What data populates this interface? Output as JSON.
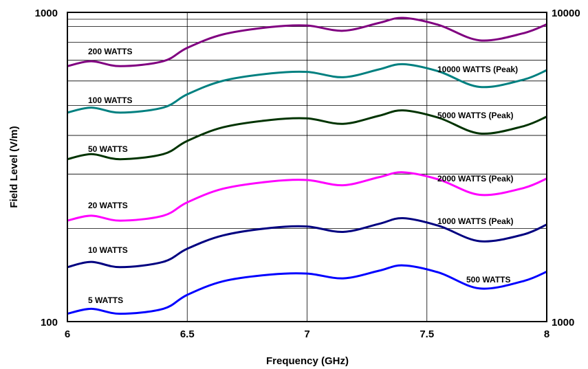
{
  "chart_data": {
    "type": "line",
    "title": "",
    "xlabel": "Frequency (GHz)",
    "ylabel": "Field Level (V/m)",
    "x_scale": "linear",
    "y_scale": "log",
    "xlim": [
      6,
      8
    ],
    "ylim": [
      100,
      1000
    ],
    "y2lim": [
      1000,
      10000
    ],
    "x_ticks": [
      "6",
      "6.5",
      "7",
      "7.5",
      "8"
    ],
    "y_left_ticks": [
      "100",
      "1000"
    ],
    "y_right_ticks": [
      "1000",
      "10000"
    ],
    "grid": true,
    "legend": "none",
    "x": [
      6.0,
      6.1,
      6.22,
      6.4,
      6.5,
      6.65,
      6.85,
      7.0,
      7.15,
      7.3,
      7.4,
      7.55,
      7.72,
      7.9,
      8.0
    ],
    "series": [
      {
        "name": "5 WATTS",
        "color": "#0000ff",
        "values": [
          106,
          110,
          106,
          110,
          122,
          135,
          142,
          143,
          138,
          146,
          152,
          144,
          128,
          135,
          145
        ]
      },
      {
        "name": "10 WATTS",
        "color": "#000080",
        "values": [
          150,
          156,
          150,
          156,
          172,
          190,
          201,
          203,
          195,
          207,
          216,
          204,
          182,
          191,
          206
        ]
      },
      {
        "name": "20 WATTS",
        "color": "#ff00ff",
        "values": [
          212,
          220,
          212,
          220,
          243,
          269,
          284,
          287,
          276,
          293,
          304,
          288,
          257,
          270,
          290
        ]
      },
      {
        "name": "50 WATTS",
        "color": "#003300",
        "values": [
          335,
          348,
          335,
          348,
          384,
          425,
          449,
          454,
          436,
          463,
          482,
          456,
          406,
          428,
          460
        ]
      },
      {
        "name": "100 WATTS",
        "color": "#008080",
        "values": [
          474,
          492,
          474,
          492,
          543,
          601,
          635,
          642,
          617,
          654,
          680,
          644,
          574,
          605,
          650
        ]
      },
      {
        "name": "200 WATTS",
        "color": "#800080",
        "values": [
          670,
          695,
          670,
          695,
          768,
          849,
          897,
          907,
          872,
          924,
          960,
          910,
          812,
          855,
          915
        ]
      }
    ],
    "annotations": [
      "10000 WATTS (Peak)",
      "5000 WATTS (Peak)",
      "2000 WATTS (Peak)",
      "1000 WATTS (Peak)",
      "500 WATTS"
    ]
  }
}
